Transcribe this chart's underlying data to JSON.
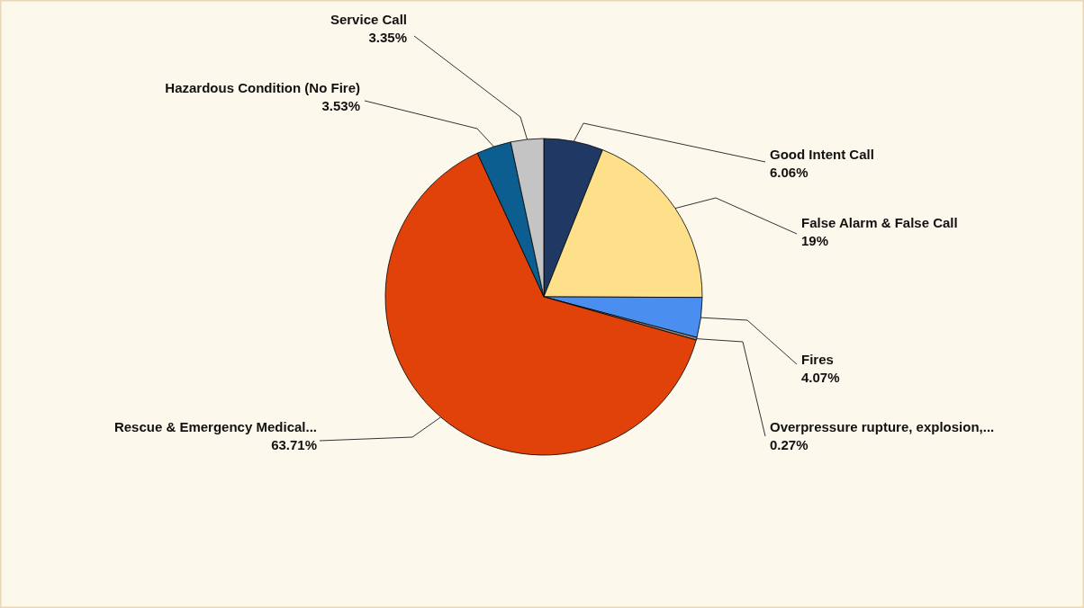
{
  "chart_data": {
    "type": "pie",
    "categories": [
      "Good Intent Call",
      "False Alarm & False Call",
      "Fires",
      "Overpressure  rupture,  explosion,...",
      "Rescue & Emergency Medical...",
      "Hazardous Condition (No Fire)",
      "Service Call"
    ],
    "values": [
      6.06,
      19,
      4.07,
      0.27,
      63.71,
      3.53,
      3.35
    ],
    "value_labels": [
      "6.06%",
      "19%",
      "4.07%",
      "0.27%",
      "63.71%",
      "3.53%",
      "3.35%"
    ],
    "colors": [
      "#1f3864",
      "#ffe08a",
      "#4a8ff0",
      "#8a8a8a",
      "#e0420a",
      "#0b5e8f",
      "#c4c4c4"
    ]
  }
}
